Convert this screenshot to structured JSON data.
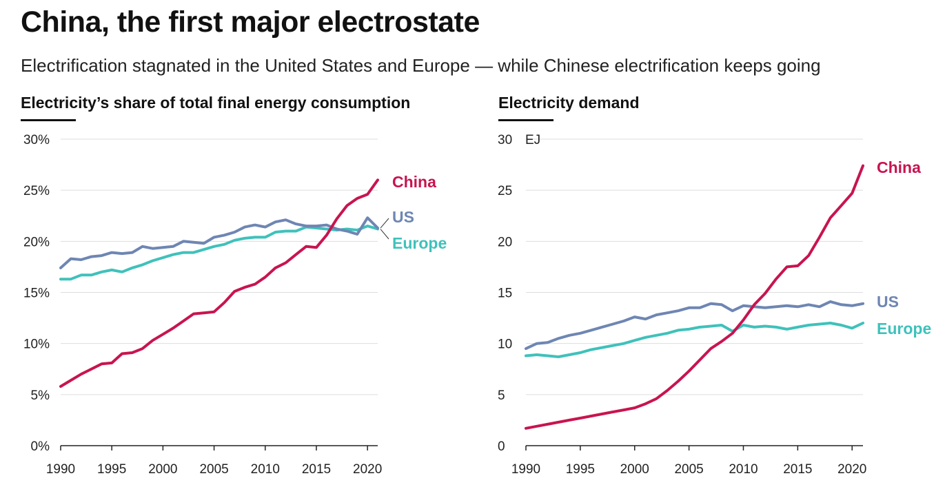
{
  "header": {
    "title": "China, the first major electrostate",
    "subtitle": "Electrification stagnated in the United States and Europe — while Chinese electrification keeps going"
  },
  "colors": {
    "China": "#c8144f",
    "US": "#6e86b3",
    "Europe": "#3fc1bb",
    "grid": "#dddddd",
    "axis": "#222222"
  },
  "chart_data": [
    {
      "type": "line",
      "title": "Electricity’s share of total final energy consumption",
      "xlabel": "",
      "ylabel": "",
      "unit_label": "",
      "xlim": [
        1990,
        2021
      ],
      "ylim": [
        0,
        30
      ],
      "xticks": [
        1990,
        1995,
        2000,
        2005,
        2010,
        2015,
        2020
      ],
      "yticks": [
        0,
        5,
        10,
        15,
        20,
        25,
        30
      ],
      "ytick_labels": [
        "0%",
        "5%",
        "10%",
        "15%",
        "20%",
        "25%",
        "30%"
      ],
      "grid": true,
      "x": [
        1990,
        1991,
        1992,
        1993,
        1994,
        1995,
        1996,
        1997,
        1998,
        1999,
        2000,
        2001,
        2002,
        2003,
        2004,
        2005,
        2006,
        2007,
        2008,
        2009,
        2010,
        2011,
        2012,
        2013,
        2014,
        2015,
        2016,
        2017,
        2018,
        2019,
        2020,
        2021
      ],
      "series": [
        {
          "name": "China",
          "values": [
            5.8,
            6.4,
            7.0,
            7.5,
            8.0,
            8.1,
            9.0,
            9.1,
            9.5,
            10.3,
            10.9,
            11.5,
            12.2,
            12.9,
            13.0,
            13.1,
            14.0,
            15.1,
            15.5,
            15.8,
            16.5,
            17.4,
            17.9,
            18.7,
            19.5,
            19.4,
            20.6,
            22.2,
            23.5,
            24.2,
            24.6,
            26.0
          ]
        },
        {
          "name": "US",
          "values": [
            17.4,
            18.3,
            18.2,
            18.5,
            18.6,
            18.9,
            18.8,
            18.9,
            19.5,
            19.3,
            19.4,
            19.5,
            20.0,
            19.9,
            19.8,
            20.4,
            20.6,
            20.9,
            21.4,
            21.6,
            21.4,
            21.9,
            22.1,
            21.7,
            21.5,
            21.5,
            21.6,
            21.2,
            21.0,
            20.7,
            22.3,
            21.3
          ]
        },
        {
          "name": "Europe",
          "values": [
            16.3,
            16.3,
            16.7,
            16.7,
            17.0,
            17.2,
            17.0,
            17.4,
            17.7,
            18.1,
            18.4,
            18.7,
            18.9,
            18.9,
            19.2,
            19.5,
            19.7,
            20.1,
            20.3,
            20.4,
            20.4,
            20.9,
            21.0,
            21.0,
            21.4,
            21.3,
            21.2,
            21.1,
            21.2,
            21.1,
            21.5,
            21.2
          ]
        }
      ],
      "labels": {
        "China": "China",
        "US": "US",
        "Europe": "Europe"
      }
    },
    {
      "type": "line",
      "title": "Electricity demand",
      "xlabel": "",
      "ylabel": "",
      "unit_label": "EJ",
      "xlim": [
        1990,
        2021
      ],
      "ylim": [
        0,
        30
      ],
      "xticks": [
        1990,
        1995,
        2000,
        2005,
        2010,
        2015,
        2020
      ],
      "yticks": [
        0,
        5,
        10,
        15,
        20,
        25,
        30
      ],
      "ytick_labels": [
        "0",
        "5",
        "10",
        "15",
        "20",
        "25",
        "30"
      ],
      "grid": true,
      "x": [
        1990,
        1991,
        1992,
        1993,
        1994,
        1995,
        1996,
        1997,
        1998,
        1999,
        2000,
        2001,
        2002,
        2003,
        2004,
        2005,
        2006,
        2007,
        2008,
        2009,
        2010,
        2011,
        2012,
        2013,
        2014,
        2015,
        2016,
        2017,
        2018,
        2019,
        2020,
        2021
      ],
      "series": [
        {
          "name": "China",
          "values": [
            1.7,
            1.9,
            2.1,
            2.3,
            2.5,
            2.7,
            2.9,
            3.1,
            3.3,
            3.5,
            3.7,
            4.1,
            4.6,
            5.4,
            6.3,
            7.3,
            8.4,
            9.5,
            10.2,
            11.0,
            12.3,
            13.8,
            14.9,
            16.3,
            17.5,
            17.6,
            18.6,
            20.4,
            22.3,
            23.5,
            24.7,
            27.4
          ]
        },
        {
          "name": "US",
          "values": [
            9.5,
            10.0,
            10.1,
            10.5,
            10.8,
            11.0,
            11.3,
            11.6,
            11.9,
            12.2,
            12.6,
            12.4,
            12.8,
            13.0,
            13.2,
            13.5,
            13.5,
            13.9,
            13.8,
            13.2,
            13.7,
            13.6,
            13.5,
            13.6,
            13.7,
            13.6,
            13.8,
            13.6,
            14.1,
            13.8,
            13.7,
            13.9
          ]
        },
        {
          "name": "Europe",
          "values": [
            8.8,
            8.9,
            8.8,
            8.7,
            8.9,
            9.1,
            9.4,
            9.6,
            9.8,
            10.0,
            10.3,
            10.6,
            10.8,
            11.0,
            11.3,
            11.4,
            11.6,
            11.7,
            11.8,
            11.2,
            11.8,
            11.6,
            11.7,
            11.6,
            11.4,
            11.6,
            11.8,
            11.9,
            12.0,
            11.8,
            11.5,
            12.0
          ]
        }
      ],
      "labels": {
        "China": "China",
        "US": "US",
        "Europe": "Europe"
      }
    }
  ]
}
